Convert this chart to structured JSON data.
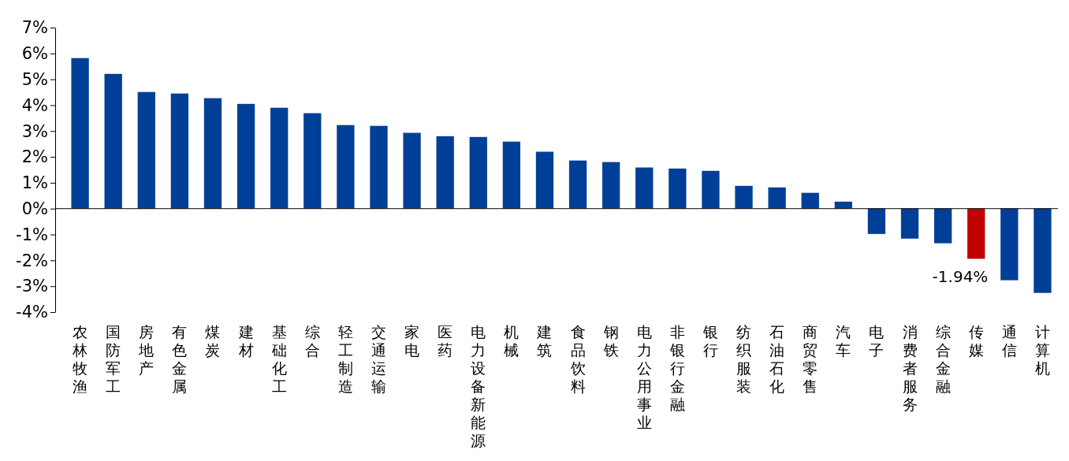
{
  "chart_data": {
    "type": "bar",
    "categories": [
      "农林牧渔",
      "国防军工",
      "房地产",
      "有色金属",
      "煤炭",
      "建材",
      "基础化工",
      "综合",
      "轻工制造",
      "交通运输",
      "家电",
      "医药",
      "电力设备新能源",
      "机械",
      "建筑",
      "食品饮料",
      "钢铁",
      "电力公用事业",
      "非银行金融",
      "银行",
      "纺织服装",
      "石油石化",
      "商贸零售",
      "汽车",
      "电子",
      "消费者服务",
      "综合金融",
      "传媒",
      "通信",
      "计算机"
    ],
    "values": [
      5.82,
      5.21,
      4.51,
      4.45,
      4.27,
      4.05,
      3.9,
      3.69,
      3.23,
      3.2,
      2.93,
      2.8,
      2.77,
      2.59,
      2.2,
      1.86,
      1.8,
      1.59,
      1.55,
      1.46,
      0.88,
      0.82,
      0.61,
      0.27,
      -0.98,
      -1.16,
      -1.34,
      -1.94,
      -2.77,
      -3.26
    ],
    "colors": [
      "#003f98",
      "#003f98",
      "#003f98",
      "#003f98",
      "#003f98",
      "#003f98",
      "#003f98",
      "#003f98",
      "#003f98",
      "#003f98",
      "#003f98",
      "#003f98",
      "#003f98",
      "#003f98",
      "#003f98",
      "#003f98",
      "#003f98",
      "#003f98",
      "#003f98",
      "#003f98",
      "#003f98",
      "#003f98",
      "#003f98",
      "#003f98",
      "#003f98",
      "#003f98",
      "#003f98",
      "#c00000",
      "#003f98",
      "#003f98"
    ],
    "value_labels": [
      null,
      null,
      null,
      null,
      null,
      null,
      null,
      null,
      null,
      null,
      null,
      null,
      null,
      null,
      null,
      null,
      null,
      null,
      null,
      null,
      null,
      null,
      null,
      null,
      null,
      null,
      null,
      "-1.94%",
      null,
      null
    ],
    "ylim": [
      -4,
      7
    ],
    "yticks": [
      {
        "value": 7,
        "label": "7%"
      },
      {
        "value": 6,
        "label": "6%"
      },
      {
        "value": 5,
        "label": "5%"
      },
      {
        "value": 4,
        "label": "4%"
      },
      {
        "value": 3,
        "label": "3%"
      },
      {
        "value": 2,
        "label": "2%"
      },
      {
        "value": 1,
        "label": "1%"
      },
      {
        "value": 0,
        "label": "0%"
      },
      {
        "value": -1,
        "label": "-1%"
      },
      {
        "value": -2,
        "label": "-2%"
      },
      {
        "value": -3,
        "label": "-3%"
      },
      {
        "value": -4,
        "label": "-4%"
      }
    ],
    "ylabel": null
  }
}
